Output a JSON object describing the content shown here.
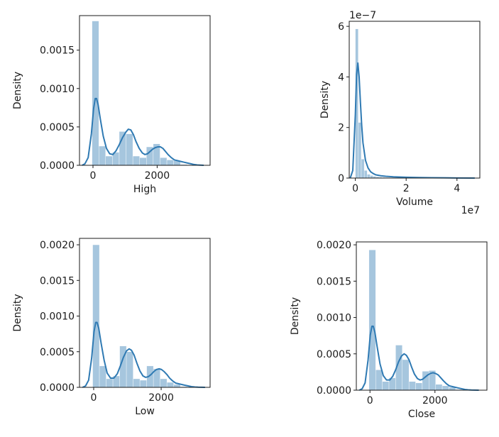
{
  "chart_data": [
    {
      "type": "histogram",
      "xlabel": "High",
      "ylabel": "Density",
      "xlim": [
        -420,
        3650
      ],
      "ylim": [
        0,
        0.00195
      ],
      "xticks": [
        {
          "v": 0,
          "label": "0"
        },
        {
          "v": 2000,
          "label": "2000"
        }
      ],
      "yticks": [
        {
          "v": 0,
          "label": "0.0000"
        },
        {
          "v": 0.0005,
          "label": "0.0005"
        },
        {
          "v": 0.001,
          "label": "0.0010"
        },
        {
          "v": 0.0015,
          "label": "0.0015"
        }
      ],
      "offset_label": "",
      "hist": {
        "start": -30,
        "width": 212,
        "densities": [
          0.00188,
          0.00025,
          0.00012,
          0.00017,
          0.00044,
          0.00041,
          0.00012,
          0.0001,
          0.00024,
          0.00028,
          0.0001,
          7e-05,
          6e-05,
          1e-05
        ]
      },
      "kde": {
        "x": [
          -340,
          -250,
          -150,
          -50,
          20,
          70,
          110,
          160,
          230,
          320,
          420,
          520,
          620,
          720,
          820,
          920,
          1020,
          1100,
          1180,
          1260,
          1340,
          1440,
          1540,
          1620,
          1700,
          1780,
          1860,
          1940,
          2020,
          2100,
          2180,
          2260,
          2340,
          2440,
          2540,
          2640,
          2740,
          2840,
          2940,
          3050,
          3150,
          3250,
          3350,
          3450
        ],
        "y": [
          0,
          2e-05,
          0.0001,
          0.00041,
          0.00074,
          0.00087,
          0.00087,
          0.00079,
          0.0006,
          0.00038,
          0.00022,
          0.00015,
          0.00014,
          0.00019,
          0.00027,
          0.00036,
          0.00043,
          0.00047,
          0.00046,
          0.0004,
          0.00031,
          0.00022,
          0.00016,
          0.00014,
          0.00015,
          0.00018,
          0.00021,
          0.00023,
          0.00024,
          0.00024,
          0.00022,
          0.00018,
          0.00014,
          0.0001,
          7e-05,
          6e-05,
          5e-05,
          4e-05,
          3e-05,
          2e-05,
          1e-05,
          5e-06,
          2e-06,
          0
        ]
      }
    },
    {
      "type": "histogram",
      "xlabel": "Volume",
      "ylabel": "Density",
      "xlim": [
        -2400000.0,
        49000000.0
      ],
      "ylim": [
        0,
        6.2e-07
      ],
      "xticks": [
        {
          "v": 0,
          "label": "0"
        },
        {
          "v": 20000000.0,
          "label": "2"
        },
        {
          "v": 40000000.0,
          "label": "4"
        }
      ],
      "yticks": [
        {
          "v": 0,
          "label": "0"
        },
        {
          "v": 2e-07,
          "label": "2"
        },
        {
          "v": 4e-07,
          "label": "4"
        },
        {
          "v": 6e-07,
          "label": "6"
        }
      ],
      "offset_label": "1e7",
      "offset_label_y": "1e−7",
      "hist": {
        "start": 0,
        "width": 1170000.0,
        "densities": [
          5.9e-07,
          2.2e-07,
          7.5e-08,
          3e-08,
          1.5e-08,
          1e-08,
          7e-09,
          5e-09,
          4e-09,
          3e-09,
          2.5e-09,
          2e-09,
          1.5e-09,
          1e-09,
          1e-09,
          8e-10,
          6e-10,
          5e-10,
          4e-10,
          3e-10
        ]
      },
      "kde": {
        "x": [
          -2000000.0,
          -1000000.0,
          0,
          500000.0,
          1000000.0,
          1500000.0,
          2000000.0,
          2500000.0,
          3000000.0,
          4000000.0,
          5000000.0,
          6000000.0,
          7000000.0,
          8000000.0,
          10000000.0,
          12000000.0,
          15000000.0,
          20000000.0,
          25000000.0,
          30000000.0,
          35000000.0,
          40000000.0,
          47000000.0
        ],
        "y": [
          0,
          3e-08,
          2.5e-07,
          4.1e-07,
          4.55e-07,
          4e-07,
          3e-07,
          2.1e-07,
          1.4e-07,
          7e-08,
          4e-08,
          2.5e-08,
          1.8e-08,
          1.3e-08,
          9e-09,
          7e-09,
          5e-09,
          3e-09,
          2e-09,
          1.5e-09,
          1e-09,
          5e-10,
          0
        ]
      }
    },
    {
      "type": "histogram",
      "xlabel": "Low",
      "ylabel": "Density",
      "xlim": [
        -420,
        3450
      ],
      "ylim": [
        0,
        0.00209
      ],
      "xticks": [
        {
          "v": 0,
          "label": "0"
        },
        {
          "v": 2000,
          "label": "2000"
        }
      ],
      "yticks": [
        {
          "v": 0,
          "label": "0.0000"
        },
        {
          "v": 0.0005,
          "label": "0.0005"
        },
        {
          "v": 0.001,
          "label": "0.0010"
        },
        {
          "v": 0.0015,
          "label": "0.0015"
        },
        {
          "v": 0.002,
          "label": "0.0020"
        }
      ],
      "offset_label": "",
      "hist": {
        "start": -30,
        "width": 200,
        "densities": [
          0.002,
          0.0003,
          0.00012,
          0.00016,
          0.00058,
          0.0005,
          0.00012,
          0.0001,
          0.0003,
          0.00026,
          0.00012,
          7e-05,
          4e-05,
          1e-05
        ]
      },
      "kde": {
        "x": [
          -330,
          -240,
          -150,
          -60,
          10,
          60,
          100,
          150,
          220,
          310,
          400,
          500,
          600,
          700,
          790,
          880,
          970,
          1050,
          1120,
          1200,
          1280,
          1370,
          1460,
          1540,
          1620,
          1700,
          1780,
          1860,
          1940,
          2010,
          2090,
          2170,
          2250,
          2340,
          2430,
          2520,
          2610,
          2700,
          2800,
          2900,
          3000,
          3100,
          3200,
          3300
        ],
        "y": [
          0,
          2e-05,
          0.0001,
          0.00041,
          0.00078,
          0.00091,
          0.00091,
          0.00083,
          0.00062,
          0.00038,
          0.0002,
          0.00013,
          0.00013,
          0.00019,
          0.0003,
          0.00042,
          0.00051,
          0.00054,
          0.00052,
          0.00045,
          0.00034,
          0.00023,
          0.00016,
          0.00014,
          0.00015,
          0.00018,
          0.00022,
          0.00025,
          0.00026,
          0.00025,
          0.00022,
          0.00018,
          0.00013,
          9e-05,
          6e-05,
          5e-05,
          4e-05,
          3e-05,
          2e-05,
          1e-05,
          5e-06,
          2e-06,
          1e-06,
          0
        ]
      }
    },
    {
      "type": "histogram",
      "xlabel": "Close",
      "ylabel": "Density",
      "xlim": [
        -420,
        3600
      ],
      "ylim": [
        0,
        0.00204
      ],
      "xticks": [
        {
          "v": 0,
          "label": "0"
        },
        {
          "v": 2000,
          "label": "2000"
        }
      ],
      "yticks": [
        {
          "v": 0,
          "label": "0.0000"
        },
        {
          "v": 0.0005,
          "label": "0.0005"
        },
        {
          "v": 0.001,
          "label": "0.0010"
        },
        {
          "v": 0.0015,
          "label": "0.0015"
        },
        {
          "v": 0.002,
          "label": "0.0020"
        }
      ],
      "offset_label": "",
      "hist": {
        "start": -30,
        "width": 205,
        "densities": [
          0.00193,
          0.00028,
          0.00012,
          0.00017,
          0.00062,
          0.00042,
          0.00012,
          0.0001,
          0.00026,
          0.00027,
          8e-05,
          6e-05,
          4e-05,
          1e-05
        ]
      },
      "kde": {
        "x": [
          -330,
          -240,
          -150,
          -60,
          10,
          60,
          100,
          150,
          220,
          310,
          410,
          510,
          610,
          700,
          790,
          880,
          970,
          1050,
          1120,
          1200,
          1280,
          1370,
          1460,
          1540,
          1620,
          1700,
          1780,
          1860,
          1940,
          2020,
          2100,
          2180,
          2260,
          2350,
          2440,
          2530,
          2620,
          2720,
          2820,
          2920,
          3020,
          3120,
          3220,
          3350
        ],
        "y": [
          0,
          2e-05,
          0.0001,
          0.00041,
          0.00076,
          0.00088,
          0.00088,
          0.0008,
          0.0006,
          0.00036,
          0.0002,
          0.00014,
          0.00014,
          0.00019,
          0.00028,
          0.00039,
          0.00047,
          0.0005,
          0.00048,
          0.00042,
          0.00032,
          0.00022,
          0.00016,
          0.00014,
          0.00015,
          0.00018,
          0.00021,
          0.00023,
          0.00024,
          0.00023,
          0.00021,
          0.00017,
          0.00013,
          9e-05,
          6e-05,
          5e-05,
          4e-05,
          3e-05,
          2e-05,
          1e-05,
          5e-06,
          2e-06,
          1e-06,
          0
        ]
      }
    }
  ],
  "colors": {
    "bar": "#a6c6de",
    "line": "#2f7ab3",
    "axis": "#1a1a1a"
  }
}
